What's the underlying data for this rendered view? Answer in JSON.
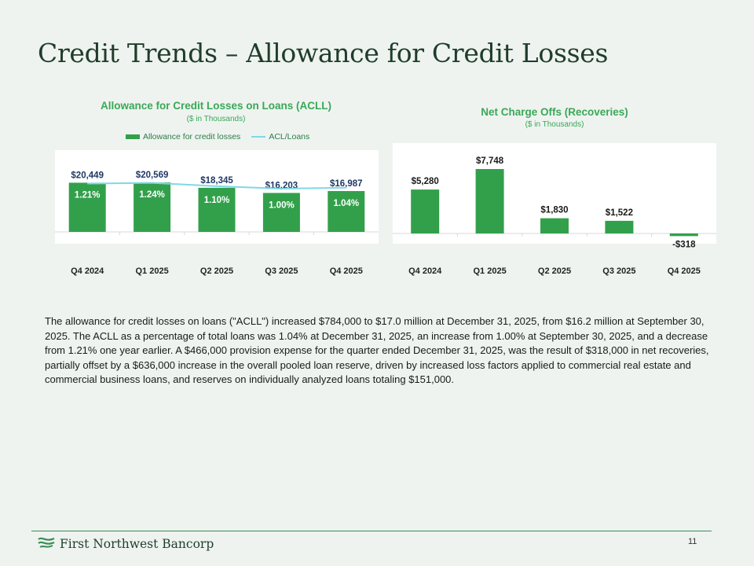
{
  "slide": {
    "title": "Credit Trends – Allowance for Credit Losses",
    "page_number": "11",
    "company": "First Northwest Bancorp",
    "body_text": "The allowance for credit losses on loans (\"ACLL\") increased $784,000 to $17.0 million at December 31, 2025, from $16.2 million at September 30, 2025. The ACLL as a percentage of total loans was 1.04% at December 31, 2025, an increase from 1.00% at September 30, 2025, and a decrease from 1.21% one year earlier. A $466,000 provision expense for the quarter ended December 31, 2025, was the result of $318,000 in net recoveries, partially offset by a $636,000 increase in the overall pooled loan reserve, driven by increased loss factors applied to commercial real estate and commercial business loans, and reserves on individually analyzed loans totaling $151,000."
  },
  "colors": {
    "bar": "#32a04b",
    "line": "#7fd9e6",
    "title_green": "#3aa856",
    "label_navy": "#1f3864"
  },
  "chart_data": [
    {
      "type": "bar",
      "title": "Allowance for Credit Losses on Loans (ACLL)",
      "subtitle": "($ in Thousands)",
      "categories": [
        "Q4 2024",
        "Q1 2025",
        "Q2 2025",
        "Q3 2025",
        "Q4 2025"
      ],
      "series": [
        {
          "name": "Allowance for credit losses",
          "kind": "bar",
          "values": [
            20449,
            20569,
            18345,
            16203,
            16987
          ],
          "labels": [
            "$20,449",
            "$20,569",
            "$18,345",
            "$16,203",
            "$16,987"
          ]
        },
        {
          "name": "ACL/Loans",
          "kind": "line",
          "values": [
            1.21,
            1.24,
            1.1,
            1.0,
            1.04
          ],
          "labels": [
            "1.21%",
            "1.24%",
            "1.10%",
            "1.00%",
            "1.04%"
          ]
        }
      ],
      "legend": [
        "Allowance for credit losses",
        "ACL/Loans"
      ],
      "legend_position": "top",
      "ylim": [
        0,
        34000
      ],
      "line_ylim": [
        -0.8,
        2.6
      ]
    },
    {
      "type": "bar",
      "title": "Net Charge Offs (Recoveries)",
      "subtitle": "($ in Thousands)",
      "categories": [
        "Q4 2024",
        "Q1 2025",
        "Q2 2025",
        "Q3 2025",
        "Q4 2025"
      ],
      "values": [
        5280,
        7748,
        1830,
        1522,
        -318
      ],
      "labels": [
        "$5,280",
        "$7,748",
        "$1,830",
        "$1,522",
        "-$318"
      ],
      "ylim": [
        -318,
        8000
      ]
    }
  ]
}
